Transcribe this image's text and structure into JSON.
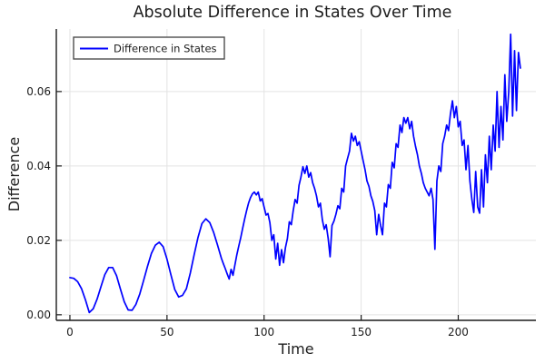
{
  "chart": {
    "title": "Absolute Difference in States Over Time",
    "colors": {
      "series": "#0000ff",
      "grid": "#e3e3e3",
      "axis": "#1c1c1c",
      "text": "#1c1c1c",
      "legend_border": "#4d4d4d",
      "background": "#ffffff"
    }
  },
  "chart_data": {
    "type": "line",
    "title": "Absolute Difference in States Over Time",
    "xlabel": "Time",
    "ylabel": "Difference",
    "grid": true,
    "legend_position": "top-left",
    "xlim": [
      -7,
      240
    ],
    "ylim": [
      -0.0015,
      0.0768
    ],
    "xticks": [
      0,
      50,
      100,
      150,
      200
    ],
    "xtick_labels": [
      "0",
      "50",
      "100",
      "150",
      "200"
    ],
    "yticks": [
      0,
      0.02,
      0.04,
      0.06
    ],
    "ytick_labels": [
      "0.00",
      "0.02",
      "0.04",
      "0.06"
    ],
    "series": [
      {
        "name": "Difference in States",
        "color": "#0000ff",
        "points": [
          [
            0,
            0.01
          ],
          [
            2,
            0.0098
          ],
          [
            4,
            0.0089
          ],
          [
            6,
            0.007
          ],
          [
            8,
            0.004
          ],
          [
            10,
            0.0006
          ],
          [
            12,
            0.0016
          ],
          [
            14,
            0.0042
          ],
          [
            16,
            0.0076
          ],
          [
            18,
            0.0108
          ],
          [
            20,
            0.0127
          ],
          [
            22,
            0.0127
          ],
          [
            24,
            0.0105
          ],
          [
            26,
            0.007
          ],
          [
            28,
            0.0035
          ],
          [
            30,
            0.0013
          ],
          [
            32,
            0.0012
          ],
          [
            34,
            0.0028
          ],
          [
            36,
            0.0056
          ],
          [
            38,
            0.0093
          ],
          [
            40,
            0.0131
          ],
          [
            42,
            0.0165
          ],
          [
            44,
            0.0187
          ],
          [
            46,
            0.0195
          ],
          [
            48,
            0.0183
          ],
          [
            50,
            0.015
          ],
          [
            52,
            0.0108
          ],
          [
            54,
            0.0068
          ],
          [
            56,
            0.0048
          ],
          [
            58,
            0.0052
          ],
          [
            60,
            0.007
          ],
          [
            62,
            0.0112
          ],
          [
            64,
            0.0162
          ],
          [
            66,
            0.0208
          ],
          [
            68,
            0.0245
          ],
          [
            70,
            0.0258
          ],
          [
            72,
            0.0248
          ],
          [
            74,
            0.0222
          ],
          [
            76,
            0.0188
          ],
          [
            78,
            0.0152
          ],
          [
            79,
            0.0138
          ],
          [
            80,
            0.0124
          ],
          [
            81,
            0.011
          ],
          [
            82,
            0.0096
          ],
          [
            83,
            0.0122
          ],
          [
            84,
            0.0106
          ],
          [
            85,
            0.0135
          ],
          [
            86,
            0.0162
          ],
          [
            87,
            0.0185
          ],
          [
            88,
            0.0208
          ],
          [
            89,
            0.0233
          ],
          [
            90,
            0.0258
          ],
          [
            91,
            0.028
          ],
          [
            92,
            0.03
          ],
          [
            93,
            0.0315
          ],
          [
            94,
            0.0325
          ],
          [
            95,
            0.033
          ],
          [
            96,
            0.0322
          ],
          [
            97,
            0.033
          ],
          [
            98,
            0.0306
          ],
          [
            99,
            0.0312
          ],
          [
            100,
            0.029
          ],
          [
            101,
            0.0268
          ],
          [
            102,
            0.0272
          ],
          [
            103,
            0.0248
          ],
          [
            104,
            0.02
          ],
          [
            105,
            0.0215
          ],
          [
            106,
            0.015
          ],
          [
            107,
            0.0192
          ],
          [
            108,
            0.0133
          ],
          [
            109,
            0.0175
          ],
          [
            110,
            0.014
          ],
          [
            111,
            0.018
          ],
          [
            112,
            0.0205
          ],
          [
            113,
            0.025
          ],
          [
            114,
            0.0242
          ],
          [
            115,
            0.028
          ],
          [
            116,
            0.031
          ],
          [
            117,
            0.03
          ],
          [
            118,
            0.0348
          ],
          [
            119,
            0.037
          ],
          [
            120,
            0.0398
          ],
          [
            121,
            0.038
          ],
          [
            122,
            0.04
          ],
          [
            123,
            0.037
          ],
          [
            124,
            0.0382
          ],
          [
            125,
            0.0355
          ],
          [
            126,
            0.034
          ],
          [
            127,
            0.032
          ],
          [
            128,
            0.029
          ],
          [
            129,
            0.03
          ],
          [
            130,
            0.0255
          ],
          [
            131,
            0.023
          ],
          [
            132,
            0.0242
          ],
          [
            133,
            0.0205
          ],
          [
            134,
            0.0156
          ],
          [
            135,
            0.024
          ],
          [
            136,
            0.0252
          ],
          [
            137,
            0.027
          ],
          [
            138,
            0.0293
          ],
          [
            139,
            0.0285
          ],
          [
            140,
            0.034
          ],
          [
            141,
            0.033
          ],
          [
            142,
            0.04
          ],
          [
            143,
            0.042
          ],
          [
            144,
            0.044
          ],
          [
            145,
            0.0488
          ],
          [
            146,
            0.0467
          ],
          [
            147,
            0.048
          ],
          [
            148,
            0.0455
          ],
          [
            149,
            0.0465
          ],
          [
            150,
            0.044
          ],
          [
            151,
            0.0415
          ],
          [
            152,
            0.039
          ],
          [
            153,
            0.036
          ],
          [
            154,
            0.0345
          ],
          [
            155,
            0.032
          ],
          [
            156,
            0.0305
          ],
          [
            157,
            0.028
          ],
          [
            158,
            0.0215
          ],
          [
            159,
            0.027
          ],
          [
            160,
            0.024
          ],
          [
            161,
            0.0215
          ],
          [
            162,
            0.03
          ],
          [
            163,
            0.029
          ],
          [
            164,
            0.035
          ],
          [
            165,
            0.034
          ],
          [
            166,
            0.041
          ],
          [
            167,
            0.0395
          ],
          [
            168,
            0.046
          ],
          [
            169,
            0.045
          ],
          [
            170,
            0.051
          ],
          [
            171,
            0.049
          ],
          [
            172,
            0.053
          ],
          [
            173,
            0.0515
          ],
          [
            174,
            0.053
          ],
          [
            175,
            0.05
          ],
          [
            176,
            0.052
          ],
          [
            177,
            0.048
          ],
          [
            178,
            0.0452
          ],
          [
            179,
            0.043
          ],
          [
            180,
            0.04
          ],
          [
            181,
            0.038
          ],
          [
            182,
            0.0355
          ],
          [
            183,
            0.034
          ],
          [
            184,
            0.033
          ],
          [
            185,
            0.032
          ],
          [
            186,
            0.034
          ],
          [
            187,
            0.031
          ],
          [
            188,
            0.0176
          ],
          [
            189,
            0.036
          ],
          [
            190,
            0.04
          ],
          [
            191,
            0.0385
          ],
          [
            192,
            0.046
          ],
          [
            193,
            0.048
          ],
          [
            194,
            0.051
          ],
          [
            195,
            0.0495
          ],
          [
            196,
            0.054
          ],
          [
            197,
            0.0575
          ],
          [
            198,
            0.053
          ],
          [
            199,
            0.056
          ],
          [
            200,
            0.0505
          ],
          [
            201,
            0.052
          ],
          [
            202,
            0.0455
          ],
          [
            203,
            0.047
          ],
          [
            204,
            0.039
          ],
          [
            205,
            0.0455
          ],
          [
            206,
            0.036
          ],
          [
            207,
            0.031
          ],
          [
            208,
            0.0275
          ],
          [
            209,
            0.0385
          ],
          [
            210,
            0.029
          ],
          [
            211,
            0.0273
          ],
          [
            212,
            0.039
          ],
          [
            213,
            0.029
          ],
          [
            214,
            0.043
          ],
          [
            215,
            0.0355
          ],
          [
            216,
            0.048
          ],
          [
            217,
            0.039
          ],
          [
            218,
            0.051
          ],
          [
            219,
            0.044
          ],
          [
            220,
            0.06
          ],
          [
            221,
            0.045
          ],
          [
            222,
            0.056
          ],
          [
            223,
            0.047
          ],
          [
            224,
            0.0645
          ],
          [
            225,
            0.052
          ],
          [
            226,
            0.06
          ],
          [
            227,
            0.0754
          ],
          [
            228,
            0.0534
          ],
          [
            229,
            0.071
          ],
          [
            230,
            0.0549
          ],
          [
            231,
            0.0705
          ],
          [
            232,
            0.0663
          ]
        ]
      }
    ]
  }
}
